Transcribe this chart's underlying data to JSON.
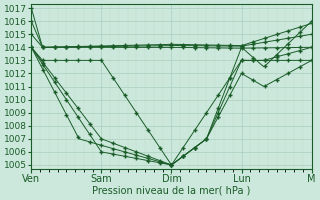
{
  "bg_color": "#cce8dc",
  "grid_color_major": "#aacfbe",
  "grid_color_minor": "#bbdccc",
  "line_color": "#1a5c28",
  "marker_color": "#1a5c28",
  "xlabel_color": "#1a5c28",
  "tick_color": "#1a5c28",
  "ylim": [
    1005,
    1017
  ],
  "yticks": [
    1005,
    1006,
    1007,
    1008,
    1009,
    1010,
    1011,
    1012,
    1013,
    1014,
    1015,
    1016,
    1017
  ],
  "xlabel": "Pression niveau de la mer( hPa )",
  "day_labels": [
    "Ven",
    "Sam",
    "Dim",
    "Lun",
    "M"
  ],
  "day_positions": [
    0,
    0.25,
    0.5,
    0.75,
    1.0
  ],
  "num_points": 193
}
